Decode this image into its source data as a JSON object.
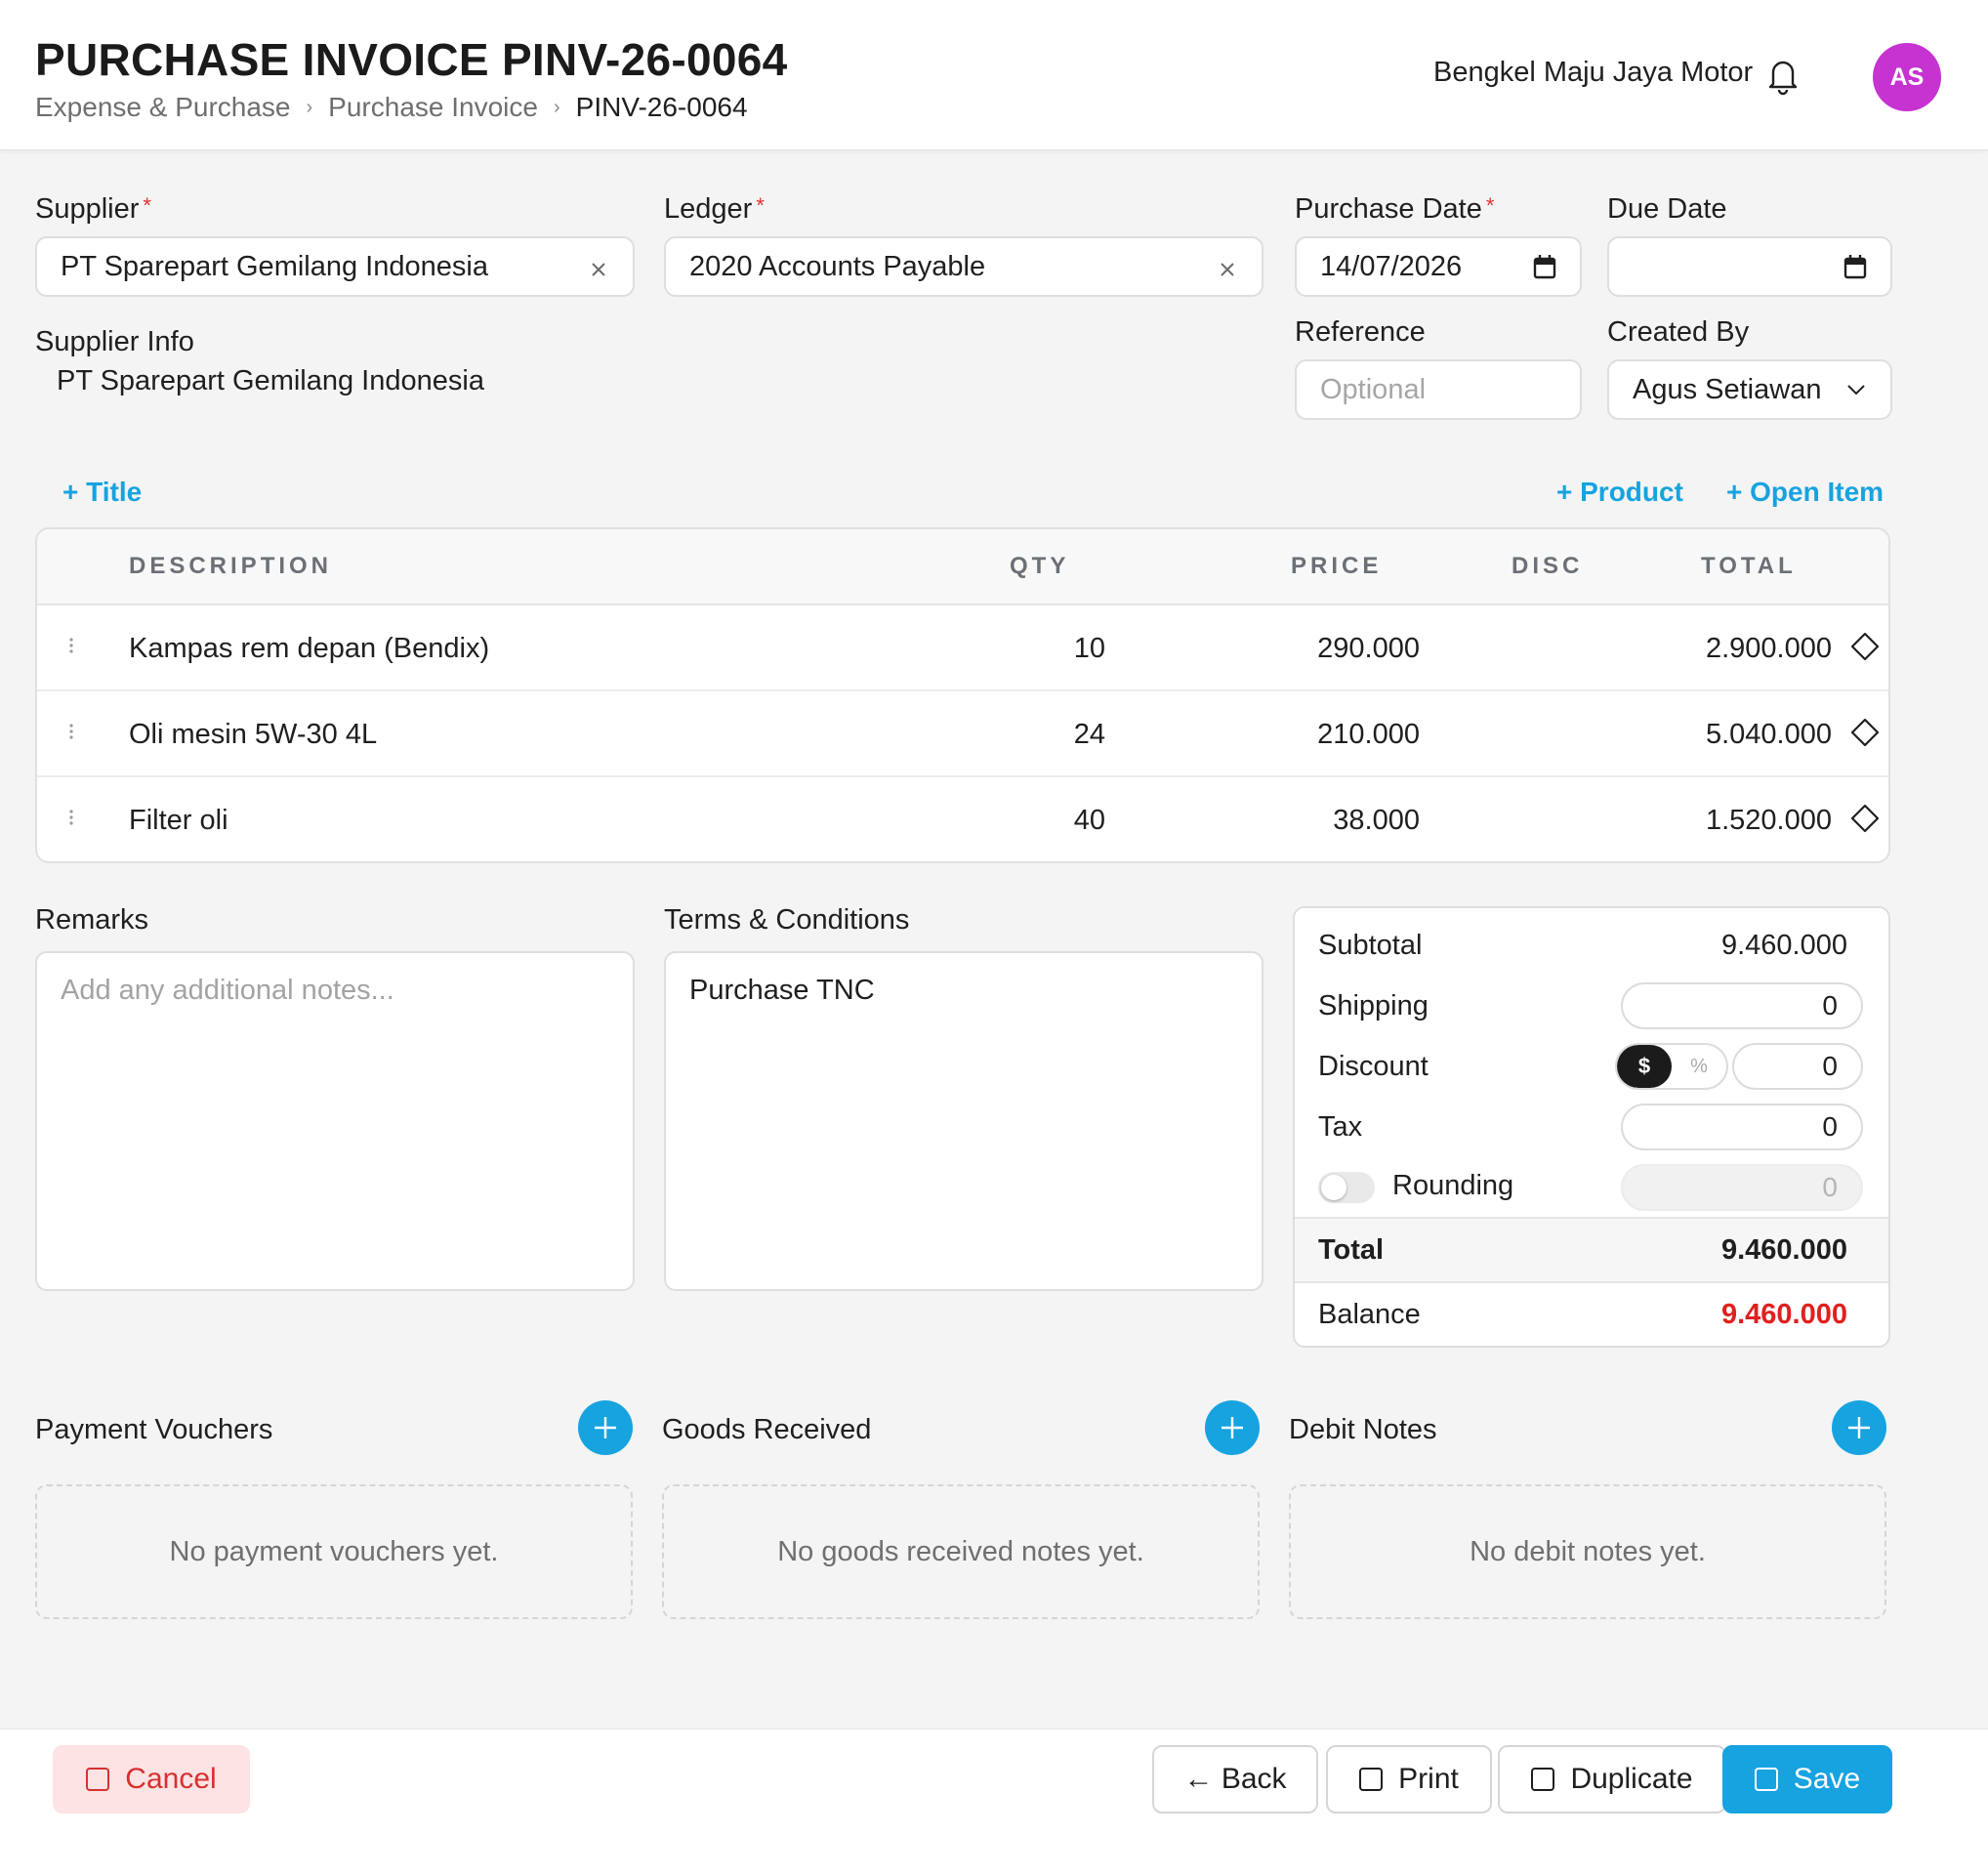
{
  "header": {
    "title": "PURCHASE INVOICE PINV-26-0064",
    "breadcrumb": [
      "Expense & Purchase",
      "Purchase Invoice",
      "PINV-26-0064"
    ],
    "company": "Bengkel Maju Jaya Motor",
    "avatar_initials": "AS"
  },
  "form": {
    "supplier_label": "Supplier",
    "supplier_value": "PT Sparepart Gemilang Indonesia",
    "ledger_label": "Ledger",
    "ledger_value": "2020 Accounts Payable",
    "purchase_date_label": "Purchase Date",
    "purchase_date_value": "14/07/2026",
    "due_date_label": "Due Date",
    "due_date_value": "",
    "supplier_info_label": "Supplier Info",
    "supplier_info_value": "PT Sparepart Gemilang Indonesia",
    "reference_label": "Reference",
    "reference_placeholder": "Optional",
    "created_by_label": "Created By",
    "created_by_value": "Agus Setiawan",
    "required_mark": "*"
  },
  "actions": {
    "add_title": "+ Title",
    "add_product": "+ Product",
    "add_open_item": "+ Open Item"
  },
  "table": {
    "headers": {
      "description": "DESCRIPTION",
      "qty": "QTY",
      "price": "PRICE",
      "disc": "DISC",
      "total": "TOTAL"
    },
    "rows": [
      {
        "description": "Kampas rem depan (Bendix)",
        "qty": "10",
        "price": "290.000",
        "disc": "",
        "total": "2.900.000"
      },
      {
        "description": "Oli mesin 5W-30 4L",
        "qty": "24",
        "price": "210.000",
        "disc": "",
        "total": "5.040.000"
      },
      {
        "description": "Filter oli",
        "qty": "40",
        "price": "38.000",
        "disc": "",
        "total": "1.520.000"
      }
    ]
  },
  "remarks": {
    "label": "Remarks",
    "placeholder": "Add any additional notes..."
  },
  "terms": {
    "label": "Terms & Conditions",
    "value": "Purchase TNC"
  },
  "summary": {
    "subtotal_label": "Subtotal",
    "subtotal_value": "9.460.000",
    "shipping_label": "Shipping",
    "shipping_value": "0",
    "discount_label": "Discount",
    "discount_value": "0",
    "discount_mode_fixed": "$",
    "discount_mode_percent": "%",
    "tax_label": "Tax",
    "tax_value": "0",
    "rounding_label": "Rounding",
    "rounding_value": "0",
    "total_label": "Total",
    "total_value": "9.460.000",
    "balance_label": "Balance",
    "balance_value": "9.460.000",
    "balance_color": "#e0201d"
  },
  "sections": {
    "payment_vouchers": {
      "title": "Payment Vouchers",
      "empty": "No payment vouchers yet."
    },
    "goods_received": {
      "title": "Goods Received",
      "empty": "No goods received notes yet."
    },
    "debit_notes": {
      "title": "Debit Notes",
      "empty": "No debit notes yet."
    }
  },
  "footer": {
    "cancel": "Cancel",
    "back": "← Back",
    "print": "Print",
    "duplicate": "Duplicate",
    "save": "Save"
  },
  "colors": {
    "accent": "#16a3e0",
    "avatar": "#c633d1",
    "danger": "#d93030"
  },
  "icons": [
    "bell-icon",
    "clear-icon",
    "calendar-icon",
    "chevron-down-icon",
    "drag-handle-icon",
    "diamond-icon",
    "plus-icon",
    "square-icon"
  ]
}
